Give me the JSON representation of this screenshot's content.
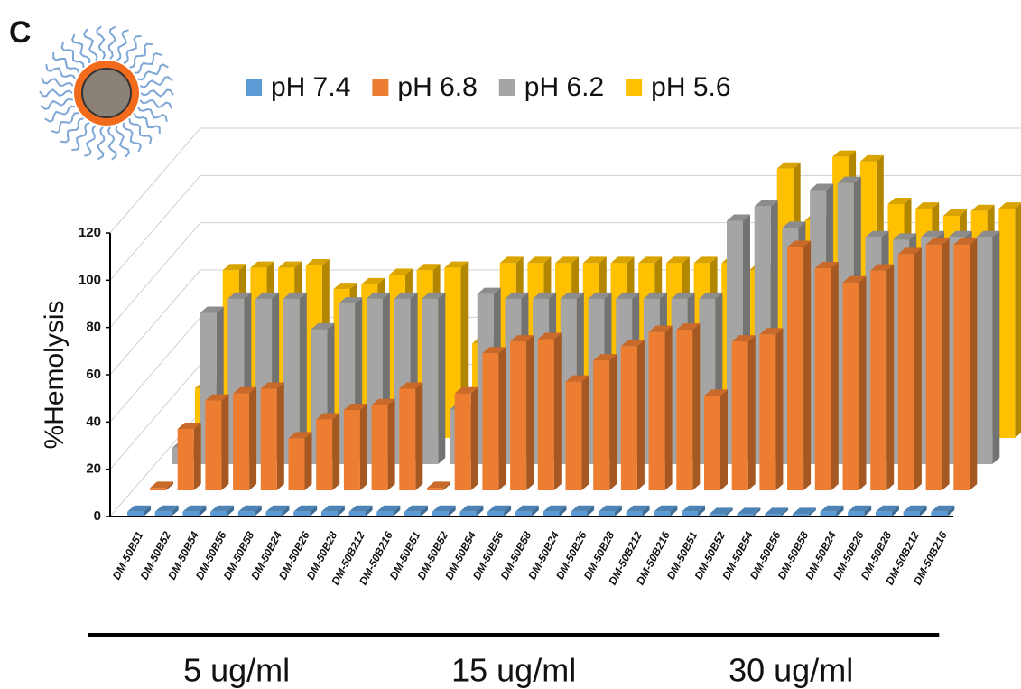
{
  "chart_data": {
    "type": "bar3d",
    "panel_label": "C",
    "y_label": "%Hemolysis",
    "categories": [
      "DM-50B51",
      "DM-50B52",
      "DM-50B54",
      "DM-50B56",
      "DM-50B58",
      "DM-50B24",
      "DM-50B26",
      "DM-50B28",
      "DM-50B212",
      "DM-50B216",
      "DM-50B51",
      "DM-50B52",
      "DM-50B54",
      "DM-50B56",
      "DM-50B58",
      "DM-50B24",
      "DM-50B26",
      "DM-50B28",
      "DM-50B212",
      "DM-50B216",
      "DM-50B51",
      "DM-50B52",
      "DM-50B54",
      "DM-50B56",
      "DM-50B58",
      "DM-50B24",
      "DM-50B26",
      "DM-50B28",
      "DM-50B212",
      "DM-50B216"
    ],
    "groups": [
      "5 ug/ml",
      "15 ug/ml",
      "30 ug/ml"
    ],
    "series": [
      {
        "name": "pH 7.4",
        "color": "#5b9bd5",
        "values": [
          2,
          2,
          2,
          2,
          2,
          2,
          2,
          2,
          2,
          2,
          2,
          2,
          2,
          2,
          2,
          2,
          2,
          2,
          2,
          2,
          2,
          1,
          1,
          1,
          1,
          2,
          2,
          2,
          2,
          2
        ]
      },
      {
        "name": "pH 6.8",
        "color": "#ed7d31",
        "values": [
          1,
          26,
          38,
          41,
          43,
          22,
          30,
          34,
          36,
          43,
          1,
          41,
          58,
          63,
          64,
          46,
          55,
          61,
          67,
          68,
          40,
          63,
          66,
          103,
          94,
          88,
          93,
          100,
          104,
          104
        ]
      },
      {
        "name": "pH 6.2",
        "color": "#a5a5a5",
        "values": [
          7,
          64,
          70,
          70,
          70,
          57,
          68,
          70,
          70,
          70,
          23,
          72,
          70,
          70,
          70,
          70,
          70,
          70,
          70,
          70,
          103,
          109,
          100,
          116,
          119,
          96,
          95,
          96,
          96,
          96
        ]
      },
      {
        "name": "pH 5.6",
        "color": "#ffc000",
        "values": [
          21,
          71,
          72,
          72,
          73,
          63,
          65,
          69,
          71,
          72,
          40,
          74,
          74,
          74,
          74,
          74,
          74,
          74,
          74,
          74,
          71,
          114,
          92,
          119,
          117,
          99,
          97,
          94,
          96,
          97
        ]
      }
    ],
    "ylim": [
      0,
      120
    ],
    "yticks": [
      0,
      20,
      40,
      60,
      80,
      100,
      120
    ],
    "grid": true,
    "legend": "top"
  }
}
